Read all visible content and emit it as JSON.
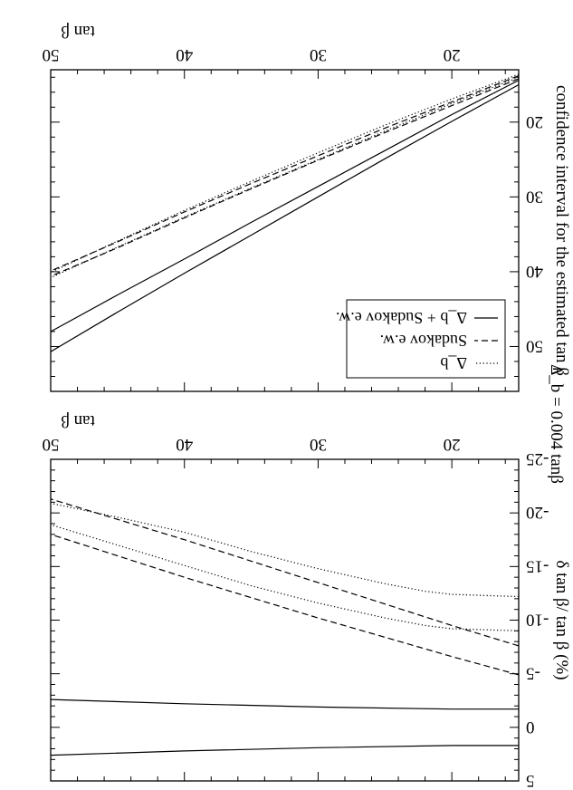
{
  "figure_title": "Δ_b = 0.004 tanβ",
  "legend": {
    "entries": [
      {
        "style": "dotted",
        "label": "Δ_b"
      },
      {
        "style": "dashed",
        "label": "Sudakov e.w."
      },
      {
        "style": "solid",
        "label": "Δ_b + Sudakov e.w."
      }
    ]
  },
  "chart_data": [
    {
      "type": "line",
      "xlabel": "tan β",
      "ylabel": "confidence interval for the estimated tan β",
      "xlim": [
        15,
        50
      ],
      "ylim": [
        13,
        56
      ],
      "x_ticks": [
        20,
        30,
        40,
        50
      ],
      "y_ticks": [
        20,
        30,
        40,
        50
      ],
      "grid": false,
      "legend_position": "top-left",
      "series": [
        {
          "name": "Δ_b",
          "style": "dotted",
          "x": [
            15,
            20,
            25,
            30,
            35,
            40,
            45,
            50
          ],
          "y": [
            13.6,
            16.9,
            20.4,
            24.1,
            27.9,
            31.8,
            35.9,
            40.1
          ]
        },
        {
          "style": "dotted",
          "x": [
            15,
            20,
            25,
            30,
            35,
            40,
            45,
            50
          ],
          "y": [
            14.0,
            17.5,
            21.2,
            25.0,
            28.8,
            32.7,
            36.7,
            40.8
          ]
        },
        {
          "name": "Sudakov e.w.",
          "style": "dashed",
          "x": [
            15,
            20,
            25,
            30,
            35,
            40,
            45,
            50
          ],
          "y": [
            13.8,
            17.3,
            20.8,
            24.5,
            28.2,
            32.0,
            36.0,
            39.9
          ]
        },
        {
          "style": "dashed",
          "x": [
            15,
            20,
            25,
            30,
            35,
            40,
            45,
            50
          ],
          "y": [
            14.2,
            17.8,
            21.4,
            25.1,
            28.9,
            32.8,
            36.8,
            40.6
          ]
        },
        {
          "name": "Δ_b + Sudakov e.w.",
          "style": "solid",
          "x": [
            15,
            20,
            25,
            30,
            35,
            40,
            45,
            50
          ],
          "y": [
            14.4,
            19.0,
            23.8,
            28.6,
            33.4,
            38.3,
            43.1,
            48.0
          ]
        },
        {
          "style": "solid",
          "x": [
            15,
            20,
            25,
            30,
            35,
            40,
            45,
            50
          ],
          "y": [
            15.0,
            19.9,
            24.9,
            30.0,
            35.1,
            40.2,
            45.4,
            50.7
          ]
        }
      ]
    },
    {
      "type": "line",
      "xlabel": "tan β",
      "ylabel": "δ tan β/ tan β  (%)",
      "xlim": [
        15,
        50
      ],
      "ylim": [
        -25,
        5
      ],
      "x_ticks": [
        20,
        30,
        40,
        50
      ],
      "y_ticks": [
        5,
        0,
        -5,
        -10,
        -15,
        -20,
        -25
      ],
      "grid": false,
      "series": [
        {
          "style": "solid",
          "x": [
            15,
            20,
            30,
            40,
            50
          ],
          "y": [
            1.7,
            1.7,
            1.9,
            2.2,
            2.6
          ]
        },
        {
          "style": "solid",
          "x": [
            15,
            20,
            30,
            40,
            50
          ],
          "y": [
            -1.7,
            -1.7,
            -1.9,
            -2.2,
            -2.6
          ]
        },
        {
          "style": "dashed",
          "x": [
            15,
            20,
            25,
            30,
            35,
            40,
            45,
            50
          ],
          "y": [
            -4.9,
            -6.6,
            -8.4,
            -10.2,
            -12.1,
            -14.0,
            -16.0,
            -18.0
          ]
        },
        {
          "style": "dashed",
          "x": [
            15,
            20,
            25,
            30,
            35,
            40,
            45,
            50
          ],
          "y": [
            -7.6,
            -9.5,
            -11.5,
            -13.5,
            -15.5,
            -17.5,
            -19.4,
            -21.3
          ]
        },
        {
          "style": "dotted",
          "x": [
            15,
            20,
            22,
            25,
            30,
            35,
            40,
            45,
            50
          ],
          "y": [
            -9.0,
            -9.2,
            -9.5,
            -10.2,
            -11.6,
            -13.2,
            -15.1,
            -17.0,
            -18.9
          ]
        },
        {
          "style": "dotted",
          "x": [
            15,
            20,
            22,
            25,
            30,
            35,
            40,
            45,
            50
          ],
          "y": [
            -12.2,
            -12.4,
            -12.7,
            -13.4,
            -14.8,
            -16.4,
            -18.2,
            -19.6,
            -20.9
          ]
        }
      ]
    }
  ]
}
